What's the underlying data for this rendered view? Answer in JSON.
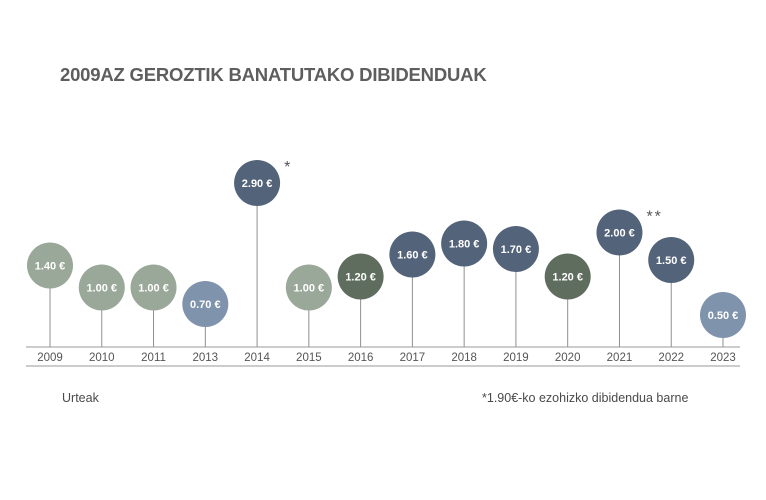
{
  "chart_data": {
    "type": "lollipop",
    "title": "2009AZ GEROZTIK BANATUTAKO DIBIDENDUAK",
    "xlabel": "Urteak",
    "ylabel": "",
    "unit": "€",
    "categories": [
      "2009",
      "2010",
      "2011",
      "2013",
      "2014",
      "2015",
      "2016",
      "2017",
      "2018",
      "2019",
      "2020",
      "2021",
      "2022",
      "2023"
    ],
    "values": [
      1.4,
      1.0,
      1.0,
      0.7,
      2.9,
      1.0,
      1.2,
      1.6,
      1.8,
      1.7,
      1.2,
      2.0,
      1.5,
      0.5
    ],
    "labels": [
      "1.40 €",
      "1.00 €",
      "1.00 €",
      "0.70 €",
      "2.90 €",
      "1.00 €",
      "1.20 €",
      "1.60 €",
      "1.80 €",
      "1.70 €",
      "1.20 €",
      "2.00 €",
      "1.50 €",
      "0.50 €"
    ],
    "markers": [
      "",
      "",
      "",
      "",
      "*",
      "",
      "",
      "",
      "",
      "",
      "",
      "**",
      "",
      ""
    ],
    "colors": [
      "#9aa89a",
      "#9aa89a",
      "#9aa89a",
      "#7f93ac",
      "#53637a",
      "#9aa89a",
      "#5e6d5e",
      "#53637a",
      "#53637a",
      "#53637a",
      "#5e6d5e",
      "#53637a",
      "#53637a",
      "#7f93ac"
    ],
    "ylim": [
      0,
      2.9
    ],
    "grid": false,
    "legend": "none",
    "footnote": "*1.90€-ko ezohizko dibidendua barne"
  }
}
